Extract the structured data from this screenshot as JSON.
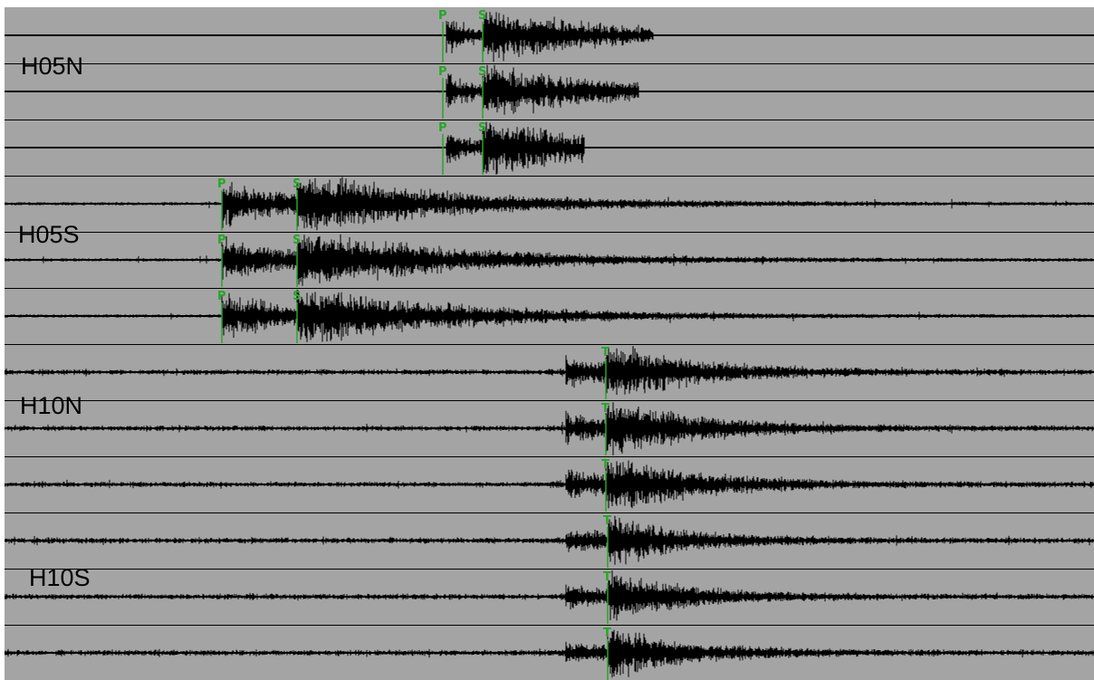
{
  "colors": {
    "background": "#a4a4a4",
    "trace": "#000000",
    "divider": "#000000",
    "pick": "#26a626"
  },
  "stations": [
    {
      "name": "H05N",
      "channels": [
        {
          "picks": [
            {
              "phase": "P"
            },
            {
              "phase": "S"
            }
          ]
        },
        {
          "picks": [
            {
              "phase": "P"
            },
            {
              "phase": "S"
            }
          ]
        },
        {
          "picks": [
            {
              "phase": "P"
            },
            {
              "phase": "S"
            }
          ]
        }
      ]
    },
    {
      "name": "H05S",
      "channels": [
        {
          "picks": [
            {
              "phase": "P"
            },
            {
              "phase": "S"
            }
          ]
        },
        {
          "picks": [
            {
              "phase": "P"
            },
            {
              "phase": "S"
            }
          ]
        },
        {
          "picks": [
            {
              "phase": "P"
            },
            {
              "phase": "S"
            }
          ]
        }
      ]
    },
    {
      "name": "H10N",
      "channels": [
        {
          "picks": [
            {
              "phase": "T"
            }
          ]
        },
        {
          "picks": [
            {
              "phase": "T"
            }
          ]
        },
        {
          "picks": [
            {
              "phase": "T"
            }
          ]
        }
      ]
    },
    {
      "name": "H10S",
      "channels": [
        {
          "picks": [
            {
              "phase": "T"
            }
          ]
        },
        {
          "picks": [
            {
              "phase": "T"
            }
          ]
        },
        {
          "picks": [
            {
              "phase": "T"
            }
          ]
        }
      ]
    }
  ]
}
